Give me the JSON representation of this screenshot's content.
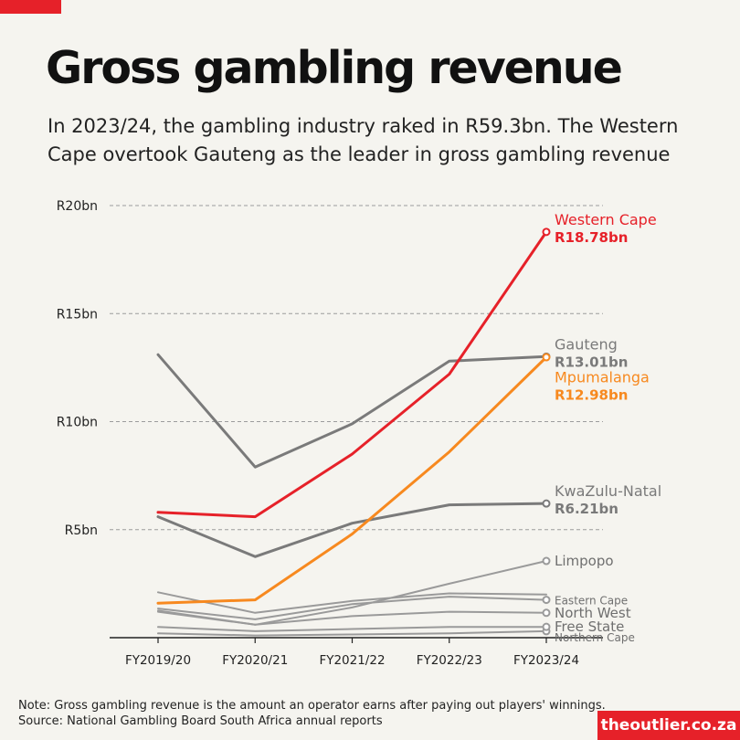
{
  "header": {
    "title": "Gross gambling revenue",
    "subtitle_line1": "In 2023/24, the gambling industry raked in R59.3bn. The Western",
    "subtitle_line2": "Cape overtook Gauteng as the leader in gross gambling revenue"
  },
  "footer": {
    "note": "Note: Gross gambling revenue is the amount an operator earns after paying out players' winnings.",
    "source": "Source: National Gambling Board South Africa annual reports",
    "brand": "theoutlier.co.za"
  },
  "colors": {
    "accent": "#e62129",
    "western_cape": "#e62129",
    "mpumalanga": "#f7891f",
    "other_province": "#7a7a7a",
    "minor_province": "#9a9a9a",
    "background": "#f5f4ef"
  },
  "chart_data": {
    "type": "line",
    "categories": [
      "FY2019/20",
      "FY2020/21",
      "FY2021/22",
      "FY2022/23",
      "FY2023/24"
    ],
    "ylim": [
      0,
      20
    ],
    "yticks": [
      5,
      10,
      15,
      20
    ],
    "ytick_labels": [
      "R5bn",
      "R10bn",
      "R15bn",
      "R20bn"
    ],
    "grid": true,
    "series": [
      {
        "name": "Northern Cape",
        "values": [
          0.2,
          0.1,
          0.15,
          0.2,
          0.3
        ],
        "style": "minor",
        "label_value": ""
      },
      {
        "name": "Free State",
        "values": [
          0.5,
          0.3,
          0.4,
          0.5,
          0.5
        ],
        "style": "minor",
        "label_value": ""
      },
      {
        "name": "North West",
        "values": [
          1.2,
          0.6,
          1.0,
          1.2,
          1.15
        ],
        "style": "minor",
        "label_value": ""
      },
      {
        "name": "Eastern Cape",
        "values": [
          1.35,
          0.85,
          1.55,
          1.9,
          1.75
        ],
        "style": "minor",
        "label_value": ""
      },
      {
        "name": "",
        "values": [
          2.1,
          1.15,
          1.7,
          2.05,
          2.0
        ],
        "style": "minor",
        "label_value": ""
      },
      {
        "name": "Limpopo",
        "values": [
          1.25,
          0.6,
          1.4,
          2.5,
          3.55
        ],
        "style": "minor",
        "label_value": ""
      },
      {
        "name": "KwaZulu-Natal",
        "values": [
          5.6,
          3.75,
          5.3,
          6.15,
          6.21
        ],
        "style": "major",
        "label_value": "R6.21bn"
      },
      {
        "name": "Gauteng",
        "values": [
          13.1,
          7.9,
          9.9,
          12.8,
          13.01
        ],
        "style": "major",
        "label_value": "R13.01bn"
      },
      {
        "name": "Mpumalanga",
        "values": [
          1.6,
          1.75,
          4.8,
          8.6,
          12.98
        ],
        "style": "orange",
        "label_value": "R12.98bn"
      },
      {
        "name": "Western Cape",
        "values": [
          5.8,
          5.6,
          8.5,
          12.2,
          18.78
        ],
        "style": "red",
        "label_value": "R18.78bn"
      }
    ]
  }
}
